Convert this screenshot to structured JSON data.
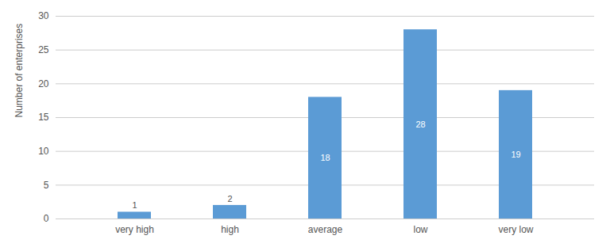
{
  "chart_data": {
    "type": "bar",
    "categories": [
      "very high",
      "high",
      "average",
      "low",
      "very low"
    ],
    "values": [
      1,
      2,
      18,
      28,
      19
    ],
    "color": "#5B9BD5",
    "ylabel": "Number of enterprises",
    "ylim": [
      0,
      30
    ],
    "yticks": [
      0,
      5,
      10,
      15,
      20,
      25,
      30
    ],
    "grid": true,
    "data_labels": true
  }
}
